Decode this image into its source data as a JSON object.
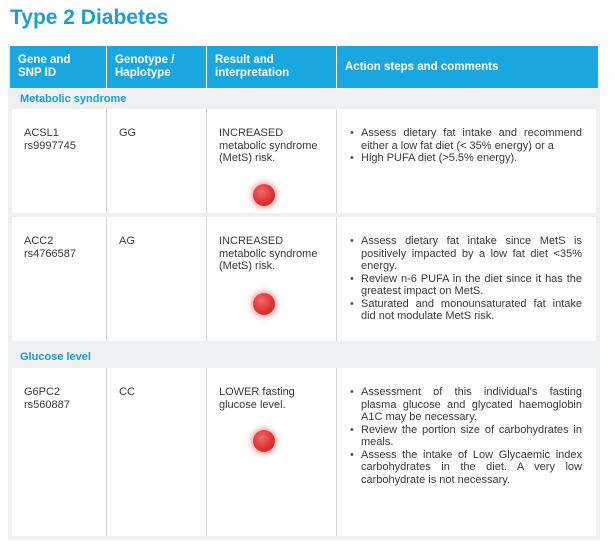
{
  "title": "Type 2 Diabetes",
  "columns": [
    "Gene and\nSNP ID",
    "Genotype /\nHaplotype",
    "Result and\ninterpretation",
    "Action steps and comments"
  ],
  "sections": [
    {
      "label": "Metabolic syndrome",
      "rows": [
        {
          "gene": "ACSL1",
          "snp": "rs9997745",
          "genotype": "GG",
          "result": [
            "INCREASED",
            "metabolic syndrome",
            "(MetS) risk."
          ],
          "risk_color": "#dd3333",
          "actions": [
            "Assess dietary fat intake and recommend either a low fat diet (< 35% energy) or a",
            "High PUFA diet (>5.5% energy)."
          ]
        },
        {
          "gene": "ACC2",
          "snp": "rs4766587",
          "genotype": "AG",
          "result": [
            "INCREASED",
            "metabolic syndrome",
            "(MetS) risk."
          ],
          "risk_color": "#dd3333",
          "actions": [
            "Assess dietary fat intake since MetS is positively impacted by a low fat diet <35% energy.",
            "Review n-6 PUFA in the diet since it has the greatest impact on MetS.",
            "Saturated and monounsaturated fat intake did not modulate MetS risk."
          ]
        }
      ]
    },
    {
      "label": "Glucose level",
      "rows": [
        {
          "gene": "G6PC2",
          "snp": "rs560887",
          "genotype": "CC",
          "result": [
            "LOWER fasting",
            "glucose level."
          ],
          "risk_color": "#dd3333",
          "actions": [
            "Assessment of this individual's fasting plasma glucose and glycated haemoglobin A1C may be necessary.",
            "Review the portion size of carbohydrates in meals.",
            "Assess the intake of Low Glycaemic index carbohydrates in the diet. A very low carbohydrate is not necessary."
          ]
        }
      ]
    }
  ]
}
